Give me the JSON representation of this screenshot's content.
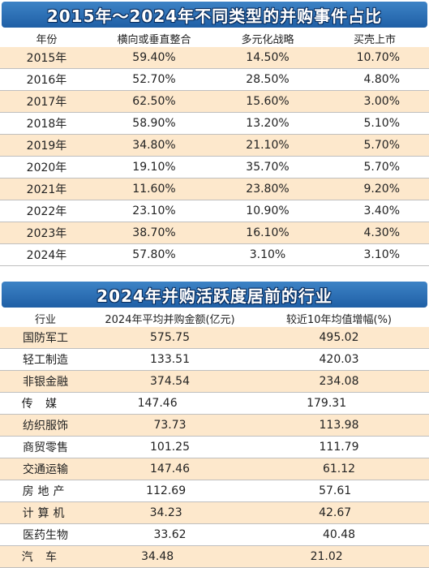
{
  "table1": {
    "title": "2015年～2024年不同类型的并购事件占比",
    "headers": [
      "年份",
      "横向或垂直整合",
      "多元化战略",
      "买壳上市"
    ],
    "rows": [
      [
        "2015年",
        "59.40%",
        "14.50%",
        "10.70%"
      ],
      [
        "2016年",
        "52.70%",
        "28.50%",
        "4.80%"
      ],
      [
        "2017年",
        "62.50%",
        "15.60%",
        "3.00%"
      ],
      [
        "2018年",
        "58.90%",
        "13.20%",
        "5.10%"
      ],
      [
        "2019年",
        "34.80%",
        "21.10%",
        "5.70%"
      ],
      [
        "2020年",
        "19.10%",
        "35.70%",
        "5.70%"
      ],
      [
        "2021年",
        "11.60%",
        "23.80%",
        "9.20%"
      ],
      [
        "2022年",
        "23.10%",
        "10.90%",
        "3.40%"
      ],
      [
        "2023年",
        "38.70%",
        "16.10%",
        "4.30%"
      ],
      [
        "2024年",
        "57.80%",
        "3.10%",
        "3.10%"
      ]
    ]
  },
  "table2": {
    "title": "2024年并购活跃度居前的行业",
    "headers": [
      "行业",
      "2024年平均并购金额(亿元)",
      "较近10年均值增幅(%)"
    ],
    "rows": [
      [
        "国防军工",
        "575.75",
        "495.02"
      ],
      [
        "轻工制造",
        "133.51",
        "420.03"
      ],
      [
        "非银金融",
        "374.54",
        "234.08"
      ],
      [
        "传媒",
        "147.46",
        "179.31"
      ],
      [
        "纺织服饰",
        "73.73",
        "113.98"
      ],
      [
        "商贸零售",
        "101.25",
        "111.79"
      ],
      [
        "交通运输",
        "147.46",
        "61.12"
      ],
      [
        "房地产",
        "112.69",
        "57.61"
      ],
      [
        "计算机",
        "34.23",
        "42.67"
      ],
      [
        "医药生物",
        "33.62",
        "40.48"
      ],
      [
        "汽车",
        "34.48",
        "21.02"
      ]
    ]
  },
  "colors": {
    "banner": "#2a6db5",
    "stripe": "#fde8cc"
  }
}
